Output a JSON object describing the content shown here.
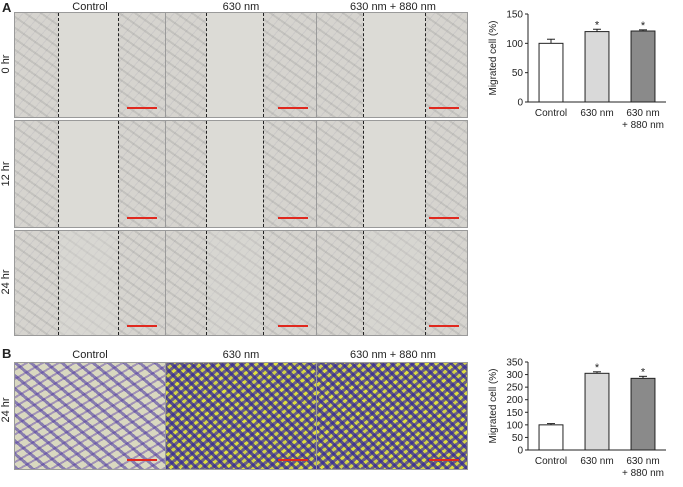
{
  "panel_a": {
    "letter": "A",
    "column_headers": [
      "Control",
      "630 nm",
      "630 nm + 880 nm"
    ],
    "row_labels": [
      "0 hr",
      "12 hr",
      "24 hr"
    ]
  },
  "panel_b": {
    "letter": "B",
    "column_headers": [
      "Control",
      "630 nm",
      "630 nm + 880 nm"
    ],
    "row_labels": [
      "24 hr"
    ]
  },
  "colors": {
    "bar_control": "#ffffff",
    "bar_630": "#d9d9d9",
    "bar_combo": "#8a8a8a",
    "scalebar": "#e0281e",
    "stain_purple": "#4a3aa0",
    "stain_yellow": "#d6d64a"
  },
  "chart_data": [
    {
      "type": "bar",
      "categories": [
        "Control",
        "630 nm",
        "630 nm\n+ 880 nm"
      ],
      "values": [
        100,
        120,
        121
      ],
      "errors": [
        7,
        4,
        2
      ],
      "significance": [
        "",
        "*",
        "*"
      ],
      "ylabel": "Migrated cell (%)",
      "xlabel": "",
      "ylim": [
        0,
        150
      ],
      "yticks": [
        0,
        50,
        100,
        150
      ],
      "grid": false,
      "bar_colors": [
        "#ffffff",
        "#d9d9d9",
        "#8a8a8a"
      ]
    },
    {
      "type": "bar",
      "categories": [
        "Control",
        "630 nm",
        "630 nm\n+ 880 nm"
      ],
      "values": [
        100,
        305,
        285
      ],
      "errors": [
        5,
        6,
        8
      ],
      "significance": [
        "",
        "*",
        "*"
      ],
      "ylabel": "Migrated cell (%)",
      "xlabel": "",
      "ylim": [
        0,
        350
      ],
      "yticks": [
        0,
        50,
        100,
        150,
        200,
        250,
        300,
        350
      ],
      "grid": false,
      "bar_colors": [
        "#ffffff",
        "#d9d9d9",
        "#8a8a8a"
      ]
    }
  ]
}
